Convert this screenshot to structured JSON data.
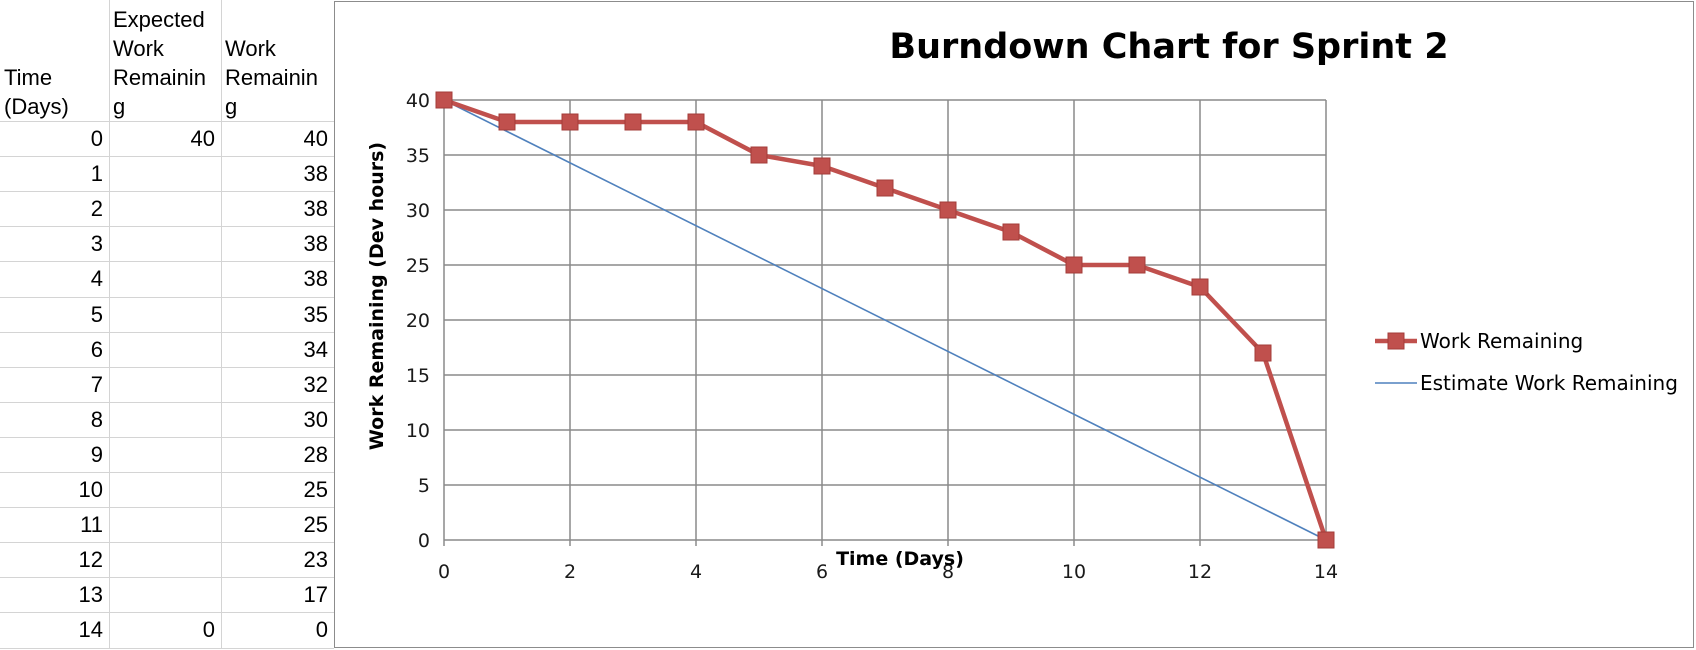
{
  "table": {
    "headers": [
      "Time\n(Days)",
      "Expected\nWork\nRemainin\ng",
      "Work\nRemainin\ng"
    ],
    "rows": [
      [
        "0",
        "40",
        "40"
      ],
      [
        "1",
        "",
        "38"
      ],
      [
        "2",
        "",
        "38"
      ],
      [
        "3",
        "",
        "38"
      ],
      [
        "4",
        "",
        "38"
      ],
      [
        "5",
        "",
        "35"
      ],
      [
        "6",
        "",
        "34"
      ],
      [
        "7",
        "",
        "32"
      ],
      [
        "8",
        "",
        "30"
      ],
      [
        "9",
        "",
        "28"
      ],
      [
        "10",
        "",
        "25"
      ],
      [
        "11",
        "",
        "25"
      ],
      [
        "12",
        "",
        "23"
      ],
      [
        "13",
        "",
        "17"
      ],
      [
        "14",
        "0",
        "0"
      ]
    ]
  },
  "chart_data": {
    "type": "line",
    "title": "Burndown Chart for Sprint 2",
    "xlabel": "Time (Days)",
    "ylabel": "Work Remaining (Dev hours)",
    "xlim": [
      0,
      14
    ],
    "ylim": [
      0,
      40
    ],
    "x_ticks": [
      "0",
      "2",
      "4",
      "6",
      "8",
      "10",
      "12",
      "14"
    ],
    "y_ticks": [
      "0",
      "5",
      "10",
      "15",
      "20",
      "25",
      "30",
      "35",
      "40"
    ],
    "grid": true,
    "legend_position": "right",
    "series": [
      {
        "name": "Work Remaining",
        "color": "#c0504d",
        "marker": "square",
        "x": [
          0,
          1,
          2,
          3,
          4,
          5,
          6,
          7,
          8,
          9,
          10,
          11,
          12,
          13,
          14
        ],
        "y": [
          40,
          38,
          38,
          38,
          38,
          35,
          34,
          32,
          30,
          28,
          25,
          25,
          23,
          17,
          0
        ]
      },
      {
        "name": "Estimate Work Remaining",
        "color": "#4f81bd",
        "marker": "none",
        "x": [
          0,
          14
        ],
        "y": [
          40,
          0
        ]
      }
    ]
  }
}
